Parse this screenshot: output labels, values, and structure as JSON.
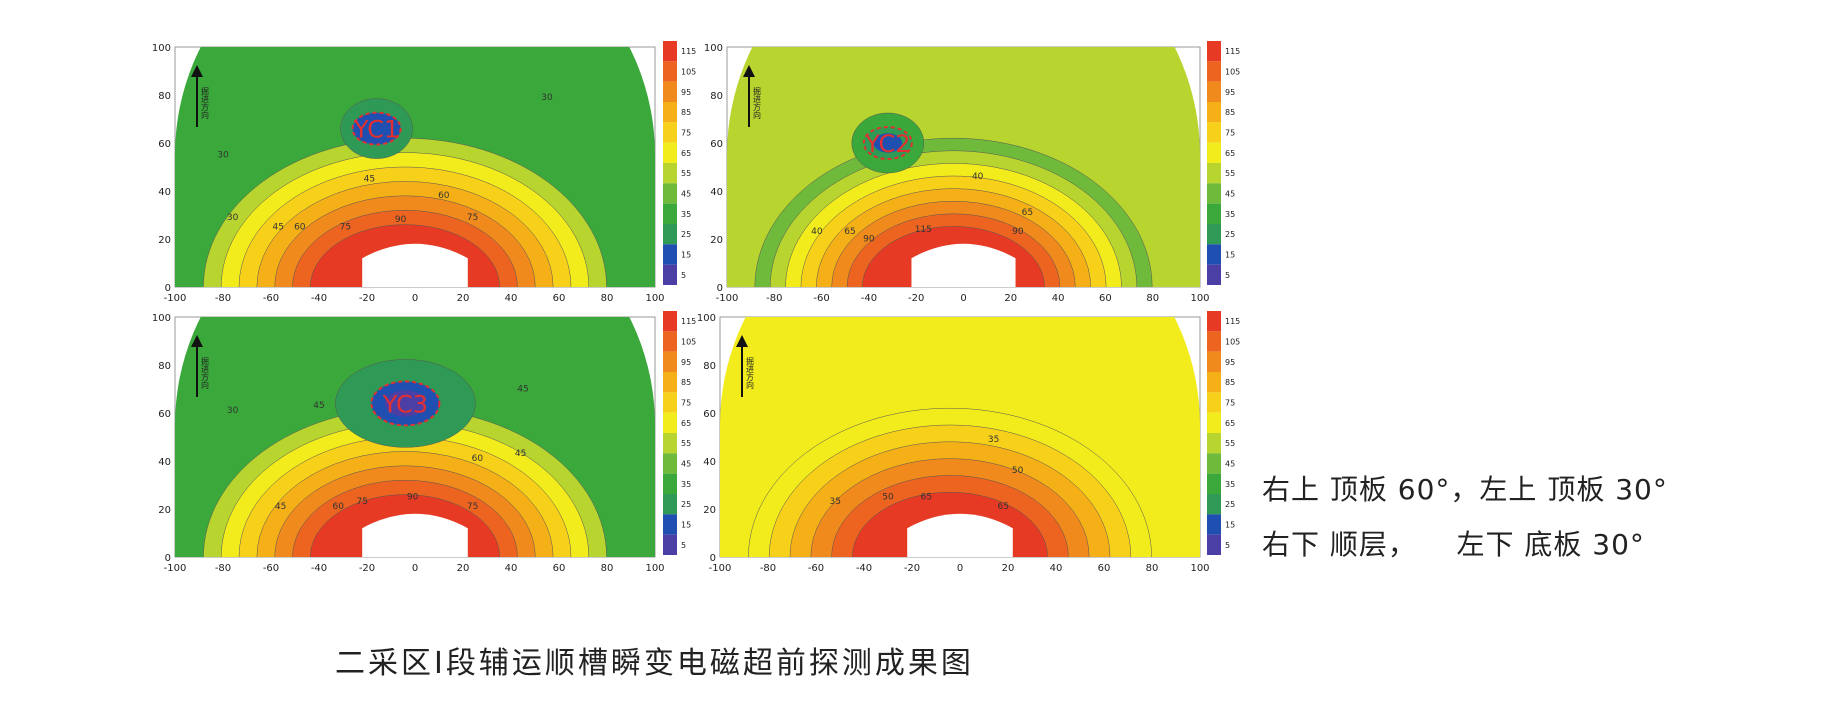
{
  "chart_data": [
    {
      "type": "heatmap",
      "panel": "top-left",
      "x_ticks": [
        -100,
        -80,
        -60,
        -40,
        -20,
        0,
        20,
        40,
        60,
        80,
        100
      ],
      "y_ticks": [
        0,
        20,
        40,
        60,
        80,
        100
      ],
      "xlim": [
        -100,
        100
      ],
      "ylim": [
        0,
        100
      ],
      "colorbar_ticks": [
        5,
        15,
        25,
        35,
        45,
        55,
        65,
        75,
        85,
        95,
        105,
        115
      ],
      "anomaly": {
        "label": "YC1",
        "center": [
          -16,
          66
        ]
      },
      "contour_labels": [
        {
          "text": "45",
          "x": -19,
          "y": 44
        },
        {
          "text": "60",
          "x": 12,
          "y": 37
        },
        {
          "text": "75",
          "x": 24,
          "y": 28
        },
        {
          "text": "75",
          "x": -29,
          "y": 24
        },
        {
          "text": "90",
          "x": -6,
          "y": 27
        },
        {
          "text": "60",
          "x": -48,
          "y": 24
        },
        {
          "text": "45",
          "x": -57,
          "y": 24
        },
        {
          "text": "30",
          "x": -76,
          "y": 28
        },
        {
          "text": "30",
          "x": -80,
          "y": 54
        },
        {
          "text": "30",
          "x": 55,
          "y": 78
        }
      ],
      "direction_label": "掘进方向"
    },
    {
      "type": "heatmap",
      "panel": "top-right",
      "x_ticks": [
        -100,
        -80,
        -60,
        -40,
        -20,
        0,
        20,
        40,
        60,
        80,
        100
      ],
      "y_ticks": [
        0,
        20,
        40,
        60,
        80,
        100
      ],
      "xlim": [
        -100,
        100
      ],
      "ylim": [
        0,
        100
      ],
      "colorbar_ticks": [
        5,
        15,
        25,
        35,
        45,
        55,
        65,
        75,
        85,
        95,
        105,
        115
      ],
      "anomaly": {
        "label": "YC2",
        "center": [
          -32,
          60
        ]
      },
      "contour_labels": [
        {
          "text": "40",
          "x": 6,
          "y": 45
        },
        {
          "text": "65",
          "x": 27,
          "y": 30
        },
        {
          "text": "90",
          "x": 23,
          "y": 22
        },
        {
          "text": "115",
          "x": -17,
          "y": 23
        },
        {
          "text": "40",
          "x": -62,
          "y": 22
        },
        {
          "text": "65",
          "x": -48,
          "y": 22
        },
        {
          "text": "90",
          "x": -40,
          "y": 19
        }
      ],
      "direction_label": "掘进方向"
    },
    {
      "type": "heatmap",
      "panel": "bottom-left",
      "x_ticks": [
        -100,
        -80,
        -60,
        -40,
        -20,
        0,
        20,
        40,
        60,
        80,
        100
      ],
      "y_ticks": [
        0,
        20,
        40,
        60,
        80,
        100
      ],
      "xlim": [
        -100,
        100
      ],
      "ylim": [
        0,
        100
      ],
      "colorbar_ticks": [
        5,
        15,
        25,
        35,
        45,
        55,
        65,
        75,
        85,
        95,
        105,
        115
      ],
      "anomaly": {
        "label": "YC3",
        "center": [
          -4,
          64
        ]
      },
      "contour_labels": [
        {
          "text": "45",
          "x": 45,
          "y": 69
        },
        {
          "text": "45",
          "x": -40,
          "y": 62
        },
        {
          "text": "30",
          "x": -76,
          "y": 60
        },
        {
          "text": "45",
          "x": 44,
          "y": 42
        },
        {
          "text": "60",
          "x": 26,
          "y": 40
        },
        {
          "text": "75",
          "x": 24,
          "y": 20
        },
        {
          "text": "90",
          "x": -1,
          "y": 24
        },
        {
          "text": "75",
          "x": -22,
          "y": 22
        },
        {
          "text": "60",
          "x": -32,
          "y": 20
        },
        {
          "text": "45",
          "x": -56,
          "y": 20
        }
      ],
      "direction_label": "掘进方向"
    },
    {
      "type": "heatmap",
      "panel": "bottom-right",
      "x_ticks": [
        -100,
        -80,
        -60,
        -40,
        -20,
        0,
        20,
        40,
        60,
        80,
        100
      ],
      "y_ticks": [
        0,
        20,
        40,
        60,
        80,
        100
      ],
      "xlim": [
        -100,
        100
      ],
      "ylim": [
        0,
        100
      ],
      "colorbar_ticks": [
        5,
        15,
        25,
        35,
        45,
        55,
        65,
        75,
        85,
        95,
        105,
        115
      ],
      "anomaly": null,
      "contour_labels": [
        {
          "text": "35",
          "x": 14,
          "y": 48
        },
        {
          "text": "50",
          "x": 24,
          "y": 35
        },
        {
          "text": "50",
          "x": -30,
          "y": 24
        },
        {
          "text": "65",
          "x": -14,
          "y": 24
        },
        {
          "text": "35",
          "x": -52,
          "y": 22
        },
        {
          "text": "65",
          "x": 18,
          "y": 20
        }
      ],
      "direction_label": "掘进方向"
    }
  ],
  "colorbar_colors": [
    "#4b3fa6",
    "#1f4fb0",
    "#2e9a55",
    "#3aa83a",
    "#6fba3a",
    "#b8d42f",
    "#f2ec1c",
    "#f7d01a",
    "#f5b018",
    "#f08a1c",
    "#ec6420",
    "#e63a24"
  ],
  "side_notes": {
    "line1": "右上 顶板 60°，左上 顶板 30°",
    "line2": "右下 顺层，    左下 底板 30°"
  },
  "caption": "二采区Ⅰ段辅运顺槽瞬变电磁超前探测成果图"
}
